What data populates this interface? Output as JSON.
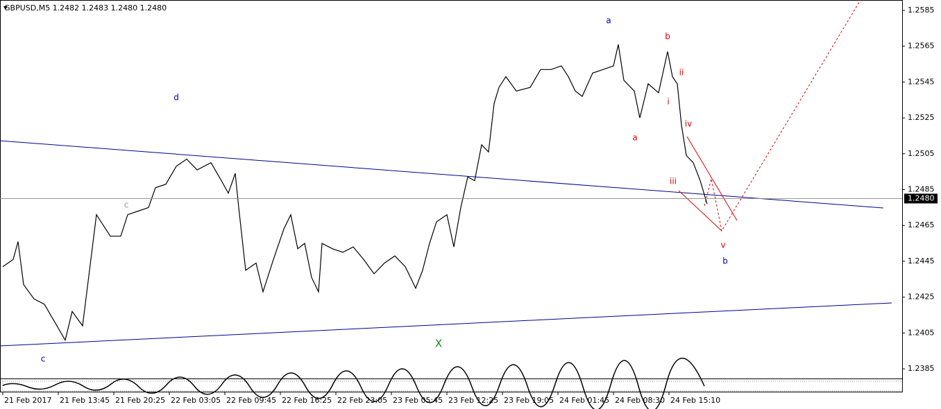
{
  "chart_data": {
    "type": "line",
    "title": "GBPUSD,M5  1.2482 1.2483 1.2480 1.2480",
    "x": [
      0,
      15,
      22,
      30,
      45,
      60,
      75,
      90,
      100,
      115,
      125,
      135,
      145,
      155,
      170,
      180,
      195,
      210,
      220,
      235,
      250,
      265,
      280,
      300,
      315,
      325,
      335,
      340,
      350,
      365,
      375,
      390,
      405,
      415,
      425,
      435,
      445,
      455,
      460,
      475,
      490,
      505,
      520,
      535,
      550,
      565,
      580,
      595,
      605,
      615,
      625,
      640,
      650,
      660,
      670,
      680,
      690,
      700,
      708,
      715,
      725,
      740,
      760,
      775,
      790,
      805,
      815,
      825,
      835,
      850,
      865,
      880,
      887,
      895,
      910,
      918,
      930,
      945,
      958,
      965,
      972,
      978,
      985,
      995,
      1005,
      1015
    ],
    "values": [
      1.2442,
      1.2446,
      1.2456,
      1.2432,
      1.2424,
      1.2421,
      1.2411,
      1.2401,
      1.2417,
      1.2409,
      1.244,
      1.2471,
      1.2465,
      1.2459,
      1.2459,
      1.2471,
      1.2473,
      1.2475,
      1.2486,
      1.2488,
      1.2498,
      1.2502,
      1.2496,
      1.25,
      1.249,
      1.2483,
      1.2494,
      1.2475,
      1.244,
      1.2444,
      1.2428,
      1.2446,
      1.2463,
      1.2471,
      1.2452,
      1.2455,
      1.2436,
      1.2428,
      1.2455,
      1.2452,
      1.245,
      1.2453,
      1.2446,
      1.2438,
      1.2444,
      1.2448,
      1.2442,
      1.243,
      1.244,
      1.2455,
      1.2467,
      1.2471,
      1.2453,
      1.2475,
      1.2492,
      1.249,
      1.251,
      1.2506,
      1.2533,
      1.2542,
      1.2548,
      1.254,
      1.2542,
      1.2552,
      1.2552,
      1.2554,
      1.2548,
      1.254,
      1.2537,
      1.255,
      1.2552,
      1.2554,
      1.2566,
      1.2546,
      1.254,
      1.2525,
      1.2544,
      1.2539,
      1.2562,
      1.2548,
      1.2544,
      1.2521,
      1.2504,
      1.25,
      1.249,
      1.2477
    ],
    "color": "#000000",
    "xlim": [
      -4,
      1296
    ],
    "xticks": [
      {
        "value": 0,
        "label": "21 Feb 2017"
      },
      {
        "value": 80,
        "label": "21 Feb 13:45"
      },
      {
        "value": 160,
        "label": "21 Feb 20:25"
      },
      {
        "value": 240,
        "label": "22 Feb 03:05"
      },
      {
        "value": 320,
        "label": "22 Feb 09:45"
      },
      {
        "value": 400,
        "label": "22 Feb 16:25"
      },
      {
        "value": 480,
        "label": "22 Feb 23:05"
      },
      {
        "value": 560,
        "label": "23 Feb 05:45"
      },
      {
        "value": 640,
        "label": "23 Feb 12:25"
      },
      {
        "value": 720,
        "label": "23 Feb 19:05"
      },
      {
        "value": 800,
        "label": "24 Feb 01:45"
      },
      {
        "value": 880,
        "label": "24 Feb 08:30"
      },
      {
        "value": 960,
        "label": "24 Feb 15:10"
      }
    ],
    "ylim": [
      1.238,
      1.259
    ],
    "yticks": [
      1.2585,
      1.2565,
      1.2545,
      1.2525,
      1.2505,
      1.2485,
      1.2465,
      1.2445,
      1.2425,
      1.2405,
      1.2385
    ],
    "last_price": {
      "value": 1.248,
      "label": "1.2480"
    },
    "annotations": [
      "a",
      "b",
      "ii",
      "i",
      "a",
      "iv",
      "iii",
      "v",
      "b",
      "d",
      "c",
      "c",
      "X"
    ]
  }
}
